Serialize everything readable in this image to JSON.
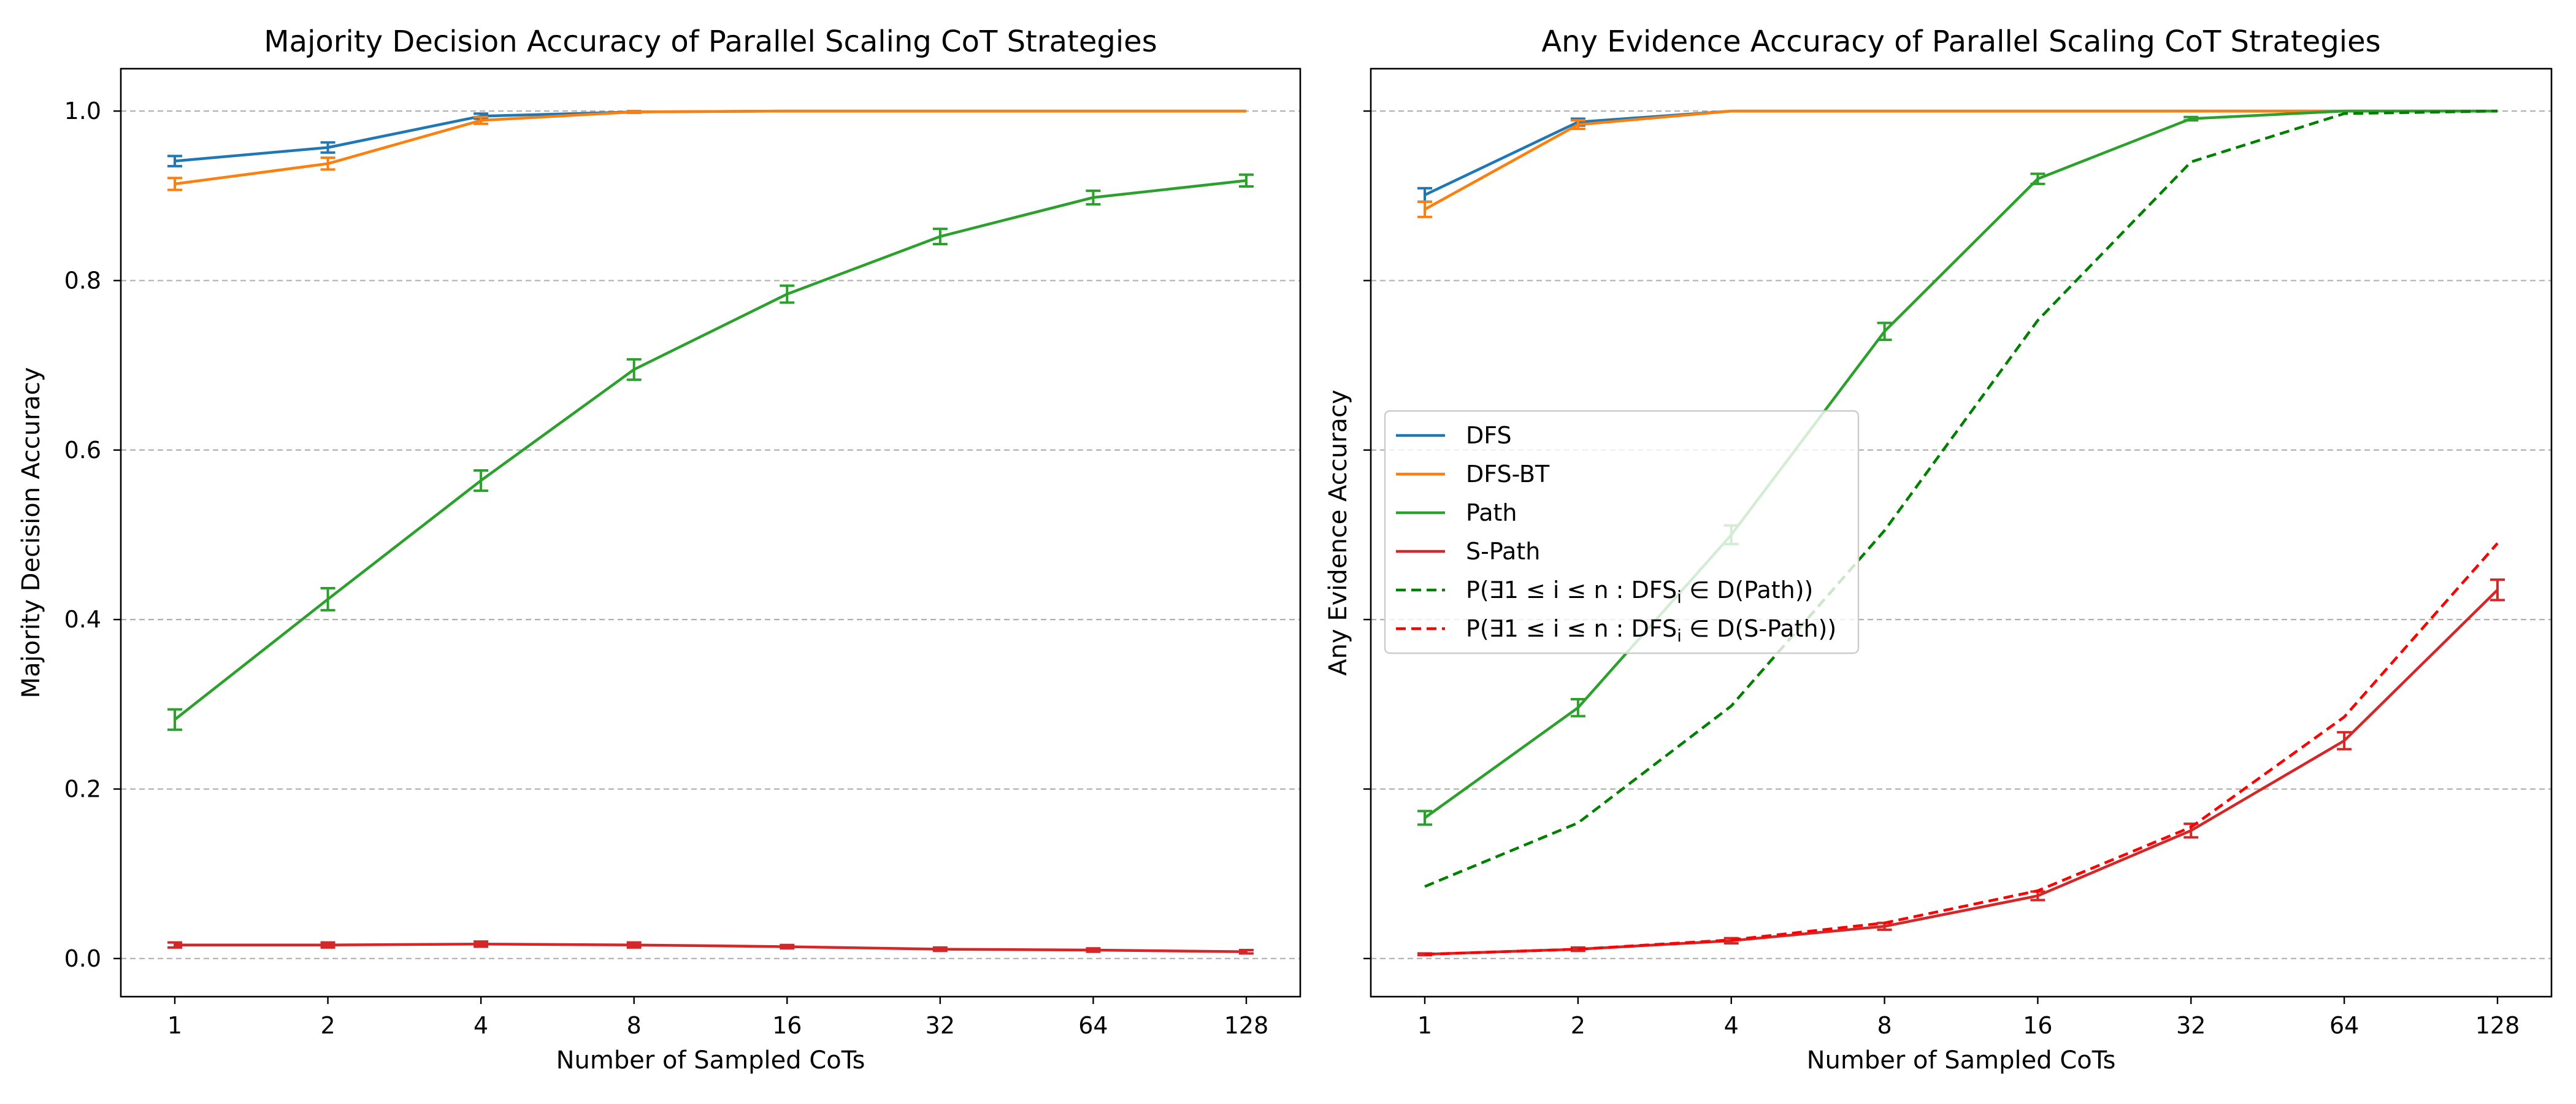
{
  "chart_data": [
    {
      "type": "line",
      "title": "Majority Decision Accuracy of Parallel Scaling CoT Strategies",
      "xlabel": "Number of Sampled CoTs",
      "ylabel": "Majority Decision Accuracy",
      "x_scale": "log2",
      "x": [
        1,
        2,
        4,
        8,
        16,
        32,
        64,
        128
      ],
      "x_tick_labels": [
        "1",
        "2",
        "4",
        "8",
        "16",
        "32",
        "64",
        "128"
      ],
      "ylim": [
        -0.045,
        1.05
      ],
      "yticks": [
        0.0,
        0.2,
        0.4,
        0.6,
        0.8,
        1.0
      ],
      "y_tick_labels": [
        "0.0",
        "0.2",
        "0.4",
        "0.6",
        "0.8",
        "1.0"
      ],
      "grid": "horizontal dashed",
      "series": [
        {
          "name": "DFS",
          "color": "#1f77b4",
          "style": "solid",
          "values": [
            0.941,
            0.957,
            0.994,
            0.999,
            1.0,
            1.0,
            1.0,
            1.0
          ],
          "errors": [
            0.006,
            0.006,
            0.003,
            0.001,
            0.0,
            0.0,
            0.0,
            0.0
          ]
        },
        {
          "name": "DFS-BT",
          "color": "#ff7f0e",
          "style": "solid",
          "values": [
            0.914,
            0.938,
            0.989,
            0.999,
            1.0,
            1.0,
            1.0,
            1.0
          ],
          "errors": [
            0.007,
            0.007,
            0.004,
            0.001,
            0.0,
            0.0,
            0.0,
            0.0
          ]
        },
        {
          "name": "Path",
          "color": "#2ca02c",
          "style": "solid",
          "values": [
            0.282,
            0.424,
            0.564,
            0.695,
            0.784,
            0.852,
            0.898,
            0.918
          ],
          "errors": [
            0.012,
            0.013,
            0.012,
            0.012,
            0.01,
            0.009,
            0.008,
            0.007
          ]
        },
        {
          "name": "S-Path",
          "color": "#d62728",
          "style": "solid",
          "values": [
            0.016,
            0.016,
            0.017,
            0.016,
            0.014,
            0.011,
            0.01,
            0.008
          ],
          "errors": [
            0.003,
            0.003,
            0.003,
            0.003,
            0.002,
            0.002,
            0.002,
            0.002
          ]
        }
      ]
    },
    {
      "type": "line",
      "title": "Any Evidence Accuracy of Parallel Scaling CoT Strategies",
      "xlabel": "Number of Sampled CoTs",
      "ylabel": "Any Evidence Accuracy",
      "x_scale": "log2",
      "x": [
        1,
        2,
        4,
        8,
        16,
        32,
        64,
        128
      ],
      "x_tick_labels": [
        "1",
        "2",
        "4",
        "8",
        "16",
        "32",
        "64",
        "128"
      ],
      "ylim": [
        -0.045,
        1.05
      ],
      "yticks": [
        0.0,
        0.2,
        0.4,
        0.6,
        0.8,
        1.0
      ],
      "y_tick_labels": [],
      "grid": "horizontal dashed",
      "legend_position": "center-left",
      "series": [
        {
          "name": "DFS",
          "color": "#1f77b4",
          "style": "solid",
          "values": [
            0.901,
            0.987,
            1.0,
            1.0,
            1.0,
            1.0,
            1.0,
            1.0
          ],
          "errors": [
            0.008,
            0.004,
            0.0,
            0.0,
            0.0,
            0.0,
            0.0,
            0.0
          ]
        },
        {
          "name": "DFS-BT",
          "color": "#ff7f0e",
          "style": "solid",
          "values": [
            0.884,
            0.984,
            1.0,
            1.0,
            1.0,
            1.0,
            1.0,
            1.0
          ],
          "errors": [
            0.009,
            0.005,
            0.0,
            0.0,
            0.0,
            0.0,
            0.0,
            0.0
          ]
        },
        {
          "name": "Path",
          "color": "#2ca02c",
          "style": "solid",
          "values": [
            0.166,
            0.296,
            0.5,
            0.74,
            0.92,
            0.991,
            1.0,
            1.0
          ],
          "errors": [
            0.008,
            0.01,
            0.011,
            0.01,
            0.006,
            0.002,
            0.0,
            0.0
          ]
        },
        {
          "name": "S-Path",
          "color": "#d62728",
          "style": "solid",
          "values": [
            0.005,
            0.011,
            0.021,
            0.038,
            0.074,
            0.151,
            0.257,
            0.435
          ],
          "errors": [
            0.001,
            0.002,
            0.003,
            0.004,
            0.005,
            0.008,
            0.01,
            0.012
          ]
        },
        {
          "name_prefix": "P(∃1 ≤ i ≤ n : DFS",
          "name_subscript": "i",
          "name_suffix": " ∈ D(Path))",
          "color": "#008000",
          "style": "dashed",
          "values": [
            0.085,
            0.16,
            0.298,
            0.505,
            0.753,
            0.94,
            0.997,
            1.0
          ]
        },
        {
          "name_prefix": "P(∃1 ≤ i ≤ n : DFS",
          "name_subscript": "i",
          "name_suffix": " ∈ D(S-Path))",
          "color": "#ff0000",
          "style": "dashed",
          "values": [
            0.005,
            0.011,
            0.022,
            0.042,
            0.08,
            0.155,
            0.285,
            0.49
          ]
        }
      ]
    }
  ]
}
